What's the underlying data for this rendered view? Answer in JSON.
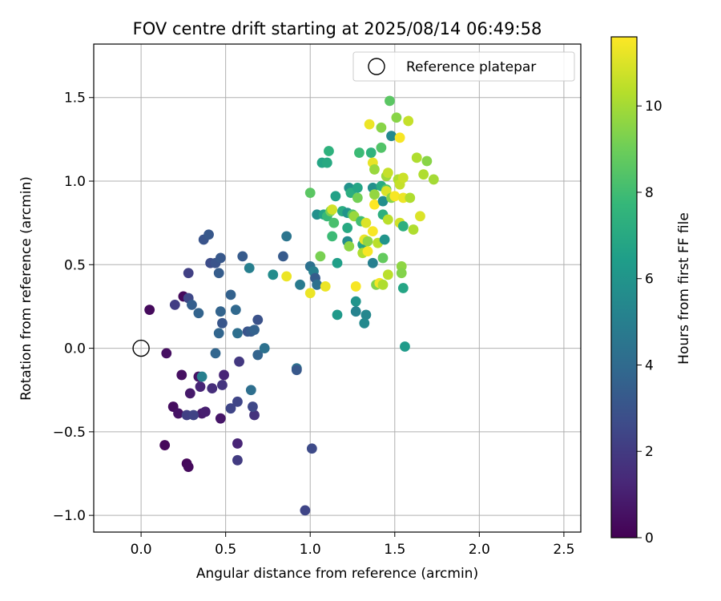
{
  "chart_data": {
    "type": "scatter",
    "title": "FOV centre drift starting at 2025/08/14 06:49:58",
    "xlabel": "Angular distance from reference (arcmin)",
    "ylabel": "Rotation from reference (arcmin)",
    "xlim": [
      -0.28,
      2.6
    ],
    "ylim": [
      -1.1,
      1.82
    ],
    "xticks": [
      0.0,
      0.5,
      1.0,
      1.5,
      2.0,
      2.5
    ],
    "xtick_labels": [
      "0.0",
      "0.5",
      "1.0",
      "1.5",
      "2.0",
      "2.5"
    ],
    "yticks": [
      -1.0,
      -0.5,
      0.0,
      0.5,
      1.0,
      1.5
    ],
    "ytick_labels": [
      "−1.0",
      "−0.5",
      "0.0",
      "0.5",
      "1.0",
      "1.5"
    ],
    "grid": true,
    "legend": {
      "position": "top-right",
      "entries": [
        {
          "label": "Reference platepar",
          "marker": "open-circle"
        }
      ]
    },
    "reference_point": {
      "x": 0.0,
      "y": 0.0
    },
    "colorbar": {
      "label": "Hours from first FF file",
      "colormap": "viridis",
      "range": [
        0,
        11.6
      ],
      "ticks": [
        0,
        2,
        4,
        6,
        8,
        10
      ],
      "tick_labels": [
        "0",
        "2",
        "4",
        "6",
        "8",
        "10"
      ],
      "stops": [
        "#440154",
        "#482878",
        "#3e4a89",
        "#31688e",
        "#26828e",
        "#1f9e89",
        "#35b779",
        "#6ece58",
        "#b5de2b",
        "#fde725"
      ]
    },
    "series": [
      {
        "points": [
          [
            0.05,
            0.23,
            0.3
          ],
          [
            0.15,
            -0.03,
            0.5
          ],
          [
            0.14,
            -0.58,
            0.2
          ],
          [
            0.24,
            -0.16,
            0.5
          ],
          [
            0.19,
            -0.35,
            0.4
          ],
          [
            0.22,
            -0.39,
            0.6
          ],
          [
            0.27,
            -0.69,
            0.2
          ],
          [
            0.28,
            -0.71,
            0.3
          ],
          [
            0.29,
            -0.27,
            0.8
          ],
          [
            0.34,
            -0.17,
            0.6
          ],
          [
            0.36,
            -0.39,
            0.9
          ],
          [
            0.38,
            -0.38,
            1.0
          ],
          [
            0.47,
            -0.42,
            0.7
          ],
          [
            0.57,
            -0.57,
            1.2
          ],
          [
            0.25,
            0.31,
            0.3
          ],
          [
            0.35,
            -0.23,
            1.2
          ],
          [
            0.42,
            -0.24,
            1.5
          ],
          [
            0.48,
            -0.22,
            1.8
          ],
          [
            0.49,
            -0.16,
            1.2
          ],
          [
            0.27,
            -0.4,
            2.2
          ],
          [
            0.31,
            -0.4,
            2.3
          ],
          [
            0.53,
            -0.36,
            2.4
          ],
          [
            0.57,
            -0.32,
            2.4
          ],
          [
            0.57,
            -0.67,
            2.0
          ],
          [
            0.58,
            -0.08,
            1.9
          ],
          [
            0.67,
            -0.4,
            1.7
          ],
          [
            0.66,
            -0.35,
            2.5
          ],
          [
            0.2,
            0.26,
            2.1
          ],
          [
            0.28,
            0.45,
            2.2
          ],
          [
            0.28,
            0.3,
            2.5
          ],
          [
            0.3,
            0.26,
            3.5
          ],
          [
            0.34,
            0.21,
            3.7
          ],
          [
            0.37,
            0.65,
            3.0
          ],
          [
            0.4,
            0.68,
            3.2
          ],
          [
            0.41,
            0.51,
            2.7
          ],
          [
            0.44,
            0.51,
            3.0
          ],
          [
            0.46,
            0.45,
            3.4
          ],
          [
            0.47,
            0.54,
            3.2
          ],
          [
            0.47,
            0.22,
            3.7
          ],
          [
            0.48,
            0.15,
            3.1
          ],
          [
            0.53,
            0.32,
            3.6
          ],
          [
            0.56,
            0.23,
            3.9
          ],
          [
            0.46,
            0.09,
            3.8
          ],
          [
            0.57,
            0.09,
            4.2
          ],
          [
            0.6,
            0.55,
            3.3
          ],
          [
            0.63,
            0.1,
            3.0
          ],
          [
            0.65,
            0.1,
            3.3
          ],
          [
            0.67,
            0.11,
            3.6
          ],
          [
            0.69,
            0.17,
            2.9
          ],
          [
            0.69,
            -0.04,
            3.7
          ],
          [
            0.73,
            0.0,
            4.3
          ],
          [
            0.44,
            -0.03,
            3.8
          ],
          [
            0.65,
            -0.25,
            4.2
          ],
          [
            0.36,
            -0.17,
            5.0
          ],
          [
            0.64,
            0.48,
            5.0
          ],
          [
            0.84,
            0.55,
            3.3
          ],
          [
            0.86,
            0.67,
            4.5
          ],
          [
            0.92,
            -0.12,
            4.4
          ],
          [
            0.92,
            -0.13,
            3.2
          ],
          [
            0.97,
            -0.97,
            2.4
          ],
          [
            1.01,
            -0.6,
            2.6
          ],
          [
            0.94,
            0.38,
            4.8
          ],
          [
            1.0,
            0.49,
            4.3
          ],
          [
            1.02,
            0.46,
            5.0
          ],
          [
            1.03,
            0.42,
            3.4
          ],
          [
            1.04,
            0.38,
            4.3
          ],
          [
            1.04,
            0.8,
            5.8
          ],
          [
            1.07,
            1.11,
            6.8
          ],
          [
            1.1,
            1.11,
            7.0
          ],
          [
            1.11,
            1.18,
            7.4
          ],
          [
            1.08,
            0.8,
            6.7
          ],
          [
            1.1,
            0.79,
            7.8
          ],
          [
            1.12,
            0.82,
            9.2
          ],
          [
            1.13,
            0.83,
            10.8
          ],
          [
            1.14,
            0.75,
            8.2
          ],
          [
            1.13,
            0.67,
            7.9
          ],
          [
            1.15,
            0.91,
            6.6
          ],
          [
            1.16,
            0.51,
            6.5
          ],
          [
            1.16,
            0.2,
            6.2
          ],
          [
            1.19,
            0.82,
            7.1
          ],
          [
            1.22,
            0.81,
            6.0
          ],
          [
            1.22,
            0.72,
            7.0
          ],
          [
            1.22,
            0.64,
            5.6
          ],
          [
            1.23,
            0.96,
            5.9
          ],
          [
            1.24,
            0.93,
            7.2
          ],
          [
            1.23,
            0.61,
            9.6
          ],
          [
            1.25,
            0.8,
            8.3
          ],
          [
            1.26,
            0.79,
            9.8
          ],
          [
            1.27,
            0.28,
            6.0
          ],
          [
            1.27,
            0.22,
            5.2
          ],
          [
            1.28,
            0.96,
            6.8
          ],
          [
            1.29,
            1.17,
            7.9
          ],
          [
            1.28,
            0.9,
            9.1
          ],
          [
            1.27,
            0.37,
            11.5
          ],
          [
            1.3,
            0.76,
            8.0
          ],
          [
            1.31,
            0.62,
            6.7
          ],
          [
            1.31,
            0.57,
            10.2
          ],
          [
            1.32,
            0.65,
            11.2
          ],
          [
            1.33,
            0.2,
            5.4
          ],
          [
            1.32,
            0.15,
            5.5
          ],
          [
            1.33,
            0.75,
            11.0
          ],
          [
            1.34,
            0.64,
            9.6
          ],
          [
            1.34,
            0.58,
            11.5
          ],
          [
            1.35,
            1.34,
            11.3
          ],
          [
            1.36,
            1.17,
            7.5
          ],
          [
            1.37,
            1.11,
            11.2
          ],
          [
            1.37,
            0.96,
            5.8
          ],
          [
            1.37,
            0.7,
            11.5
          ],
          [
            1.37,
            0.51,
            5.0
          ],
          [
            1.38,
            1.07,
            9.8
          ],
          [
            1.38,
            0.92,
            9.7
          ],
          [
            1.38,
            0.86,
            11.6
          ],
          [
            1.39,
            0.38,
            9.4
          ],
          [
            1.4,
            0.63,
            10.4
          ],
          [
            1.41,
            0.39,
            11.4
          ],
          [
            1.42,
            1.32,
            9.5
          ],
          [
            1.42,
            1.2,
            8.4
          ],
          [
            1.42,
            0.97,
            7.1
          ],
          [
            1.43,
            0.88,
            5.7
          ],
          [
            1.43,
            0.8,
            7.3
          ],
          [
            1.43,
            0.54,
            8.8
          ],
          [
            1.43,
            0.38,
            10.2
          ],
          [
            1.44,
            0.65,
            6.0
          ],
          [
            1.45,
            1.03,
            9.9
          ],
          [
            1.45,
            0.95,
            8.5
          ],
          [
            1.45,
            0.94,
            11.0
          ],
          [
            1.46,
            1.05,
            10.6
          ],
          [
            1.46,
            0.77,
            10.4
          ],
          [
            1.46,
            0.44,
            10.4
          ],
          [
            1.47,
            1.48,
            8.6
          ],
          [
            1.48,
            1.27,
            5.5
          ],
          [
            1.48,
            0.9,
            9.5
          ],
          [
            1.5,
            0.91,
            11.5
          ],
          [
            1.51,
            1.38,
            9.5
          ],
          [
            1.52,
            1.01,
            10.2
          ],
          [
            1.53,
            1.26,
            11.5
          ],
          [
            1.53,
            0.98,
            10.6
          ],
          [
            1.53,
            0.75,
            10.8
          ],
          [
            1.54,
            0.49,
            9.6
          ],
          [
            1.54,
            0.45,
            9.4
          ],
          [
            1.55,
            1.02,
            10.7
          ],
          [
            1.55,
            0.9,
            11.3
          ],
          [
            1.55,
            0.73,
            7.3
          ],
          [
            1.55,
            0.36,
            6.8
          ],
          [
            1.56,
            0.01,
            6.3
          ],
          [
            1.58,
            1.36,
            10.6
          ],
          [
            1.59,
            0.9,
            10.2
          ],
          [
            1.61,
            0.71,
            10.2
          ],
          [
            1.63,
            1.14,
            10.2
          ],
          [
            1.65,
            0.79,
            11.0
          ],
          [
            1.67,
            1.04,
            10.2
          ],
          [
            1.69,
            1.12,
            9.5
          ],
          [
            1.73,
            1.01,
            10.0
          ],
          [
            1.0,
            0.93,
            8.6
          ],
          [
            1.06,
            0.55,
            9.2
          ],
          [
            1.09,
            0.37,
            11.3
          ],
          [
            1.0,
            0.33,
            11.3
          ],
          [
            0.86,
            0.43,
            11.3
          ],
          [
            0.78,
            0.44,
            5.6
          ]
        ]
      }
    ]
  }
}
